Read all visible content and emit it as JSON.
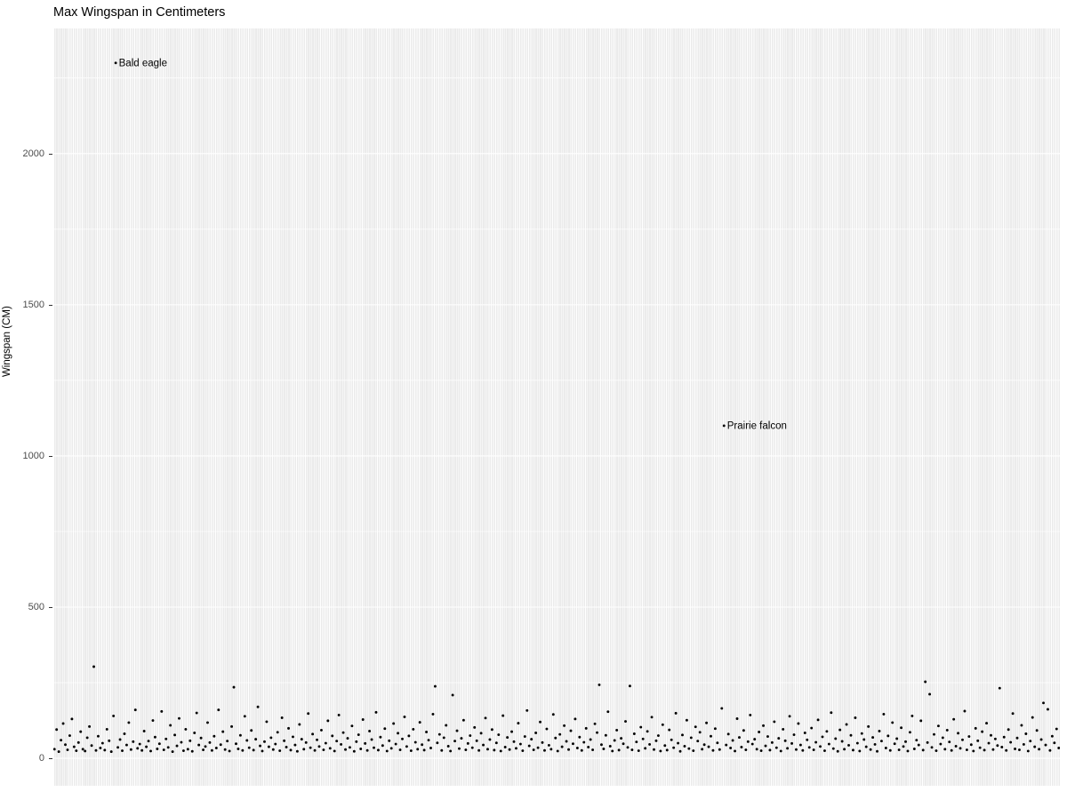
{
  "title": "Max Wingspan in Centimeters",
  "chart_data": {
    "type": "scatter",
    "title": "Max Wingspan in Centimeters",
    "xlabel": "",
    "ylabel": "Wingspan (CM)",
    "x_axis": {
      "type": "categorical",
      "n_categories": 460,
      "tick_labels_visible": false
    },
    "ylim": [
      -91,
      2414
    ],
    "y_ticks": [
      0,
      500,
      1000,
      1500,
      2000
    ],
    "y_minor_ticks": [
      250,
      750,
      1250,
      1750,
      2250
    ],
    "grid": "on",
    "legend_position": "none",
    "panel_bg": "#EBEBEB",
    "grid_color": "#FFFFFF",
    "point_color": "#000000",
    "tick_label_color": "#4D4D4D",
    "values": [
      30,
      95,
      22,
      60,
      115,
      45,
      28,
      75,
      130,
      38,
      25,
      52,
      88,
      30,
      24,
      68,
      105,
      42,
      303,
      26,
      73,
      34,
      50,
      27,
      96,
      58,
      22,
      140,
      2300,
      36,
      62,
      25,
      81,
      44,
      118,
      29,
      55,
      160,
      33,
      47,
      26,
      90,
      38,
      57,
      24,
      125,
      70,
      31,
      48,
      155,
      28,
      64,
      36,
      109,
      22,
      77,
      41,
      132,
      53,
      25,
      96,
      30,
      58,
      23,
      84,
      150,
      44,
      67,
      28,
      39,
      118,
      52,
      26,
      73,
      34,
      160,
      45,
      88,
      29,
      57,
      24,
      105,
      235,
      48,
      31,
      76,
      26,
      139,
      59,
      35,
      92,
      27,
      63,
      170,
      41,
      24,
      55,
      121,
      38,
      68,
      29,
      47,
      86,
      25,
      134,
      58,
      37,
      99,
      27,
      71,
      44,
      23,
      112,
      63,
      30,
      52,
      148,
      35,
      80,
      26,
      61,
      39,
      93,
      28,
      50,
      124,
      33,
      74,
      24,
      57,
      143,
      46,
      85,
      29,
      66,
      36,
      107,
      23,
      55,
      78,
      31,
      128,
      49,
      26,
      90,
      62,
      35,
      152,
      27,
      70,
      42,
      98,
      24,
      58,
      33,
      115,
      47,
      83,
      28,
      64,
      137,
      39,
      74,
      25,
      96,
      53,
      30,
      119,
      45,
      27,
      87,
      60,
      34,
      146,
      238,
      51,
      79,
      26,
      68,
      109,
      40,
      24,
      209,
      57,
      91,
      32,
      66,
      126,
      28,
      49,
      75,
      35,
      102,
      58,
      26,
      83,
      44,
      133,
      30,
      62,
      95,
      27,
      51,
      78,
      24,
      141,
      37,
      69,
      29,
      88,
      55,
      33,
      116,
      47,
      25,
      72,
      158,
      41,
      63,
      28,
      84,
      35,
      120,
      52,
      26,
      97,
      43,
      30,
      145,
      67,
      24,
      79,
      38,
      108,
      56,
      29,
      91,
      48,
      130,
      34,
      70,
      26,
      53,
      99,
      37,
      62,
      28,
      114,
      85,
      243,
      45,
      31,
      76,
      154,
      40,
      24,
      59,
      93,
      27,
      66,
      48,
      122,
      36,
      239,
      28,
      81,
      54,
      25,
      103,
      64,
      33,
      89,
      46,
      136,
      29,
      58,
      75,
      24,
      111,
      42,
      27,
      94,
      61,
      35,
      149,
      50,
      23,
      77,
      40,
      126,
      32,
      68,
      25,
      104,
      57,
      86,
      30,
      45,
      117,
      38,
      73,
      26,
      98,
      51,
      29,
      165,
      1100,
      44,
      80,
      34,
      59,
      24,
      131,
      69,
      37,
      92,
      28,
      55,
      143,
      47,
      63,
      30,
      87,
      25,
      108,
      41,
      72,
      27,
      52,
      121,
      35,
      66,
      24,
      96,
      58,
      33,
      139,
      49,
      78,
      29,
      115,
      44,
      26,
      84,
      61,
      36,
      100,
      28,
      53,
      127,
      39,
      71,
      25,
      89,
      47,
      151,
      32,
      65,
      23,
      94,
      56,
      30,
      112,
      43,
      76,
      27,
      134,
      50,
      24,
      82,
      62,
      38,
      105,
      29,
      69,
      46,
      23,
      90,
      57,
      146,
      34,
      74,
      26,
      118,
      48,
      65,
      28,
      101,
      39,
      55,
      24,
      86,
      140,
      31,
      60,
      44,
      124,
      27,
      253,
      52,
      212,
      36,
      79,
      25,
      107,
      47,
      68,
      30,
      93,
      54,
      26,
      129,
      40,
      83,
      33,
      61,
      156,
      28,
      72,
      45,
      24,
      99,
      58,
      35,
      88,
      27,
      116,
      50,
      76,
      29,
      64,
      42,
      232,
      37,
      70,
      26,
      95,
      53,
      148,
      31,
      67,
      28,
      109,
      46,
      81,
      24,
      57,
      135,
      38,
      92,
      30,
      62,
      183,
      44,
      162,
      26,
      73,
      51,
      97,
      34
    ],
    "labeled_points": [
      {
        "index": 28,
        "label": "Bald eagle",
        "value": 2300
      },
      {
        "index": 306,
        "label": "Prairie falcon",
        "value": 1100
      }
    ]
  }
}
